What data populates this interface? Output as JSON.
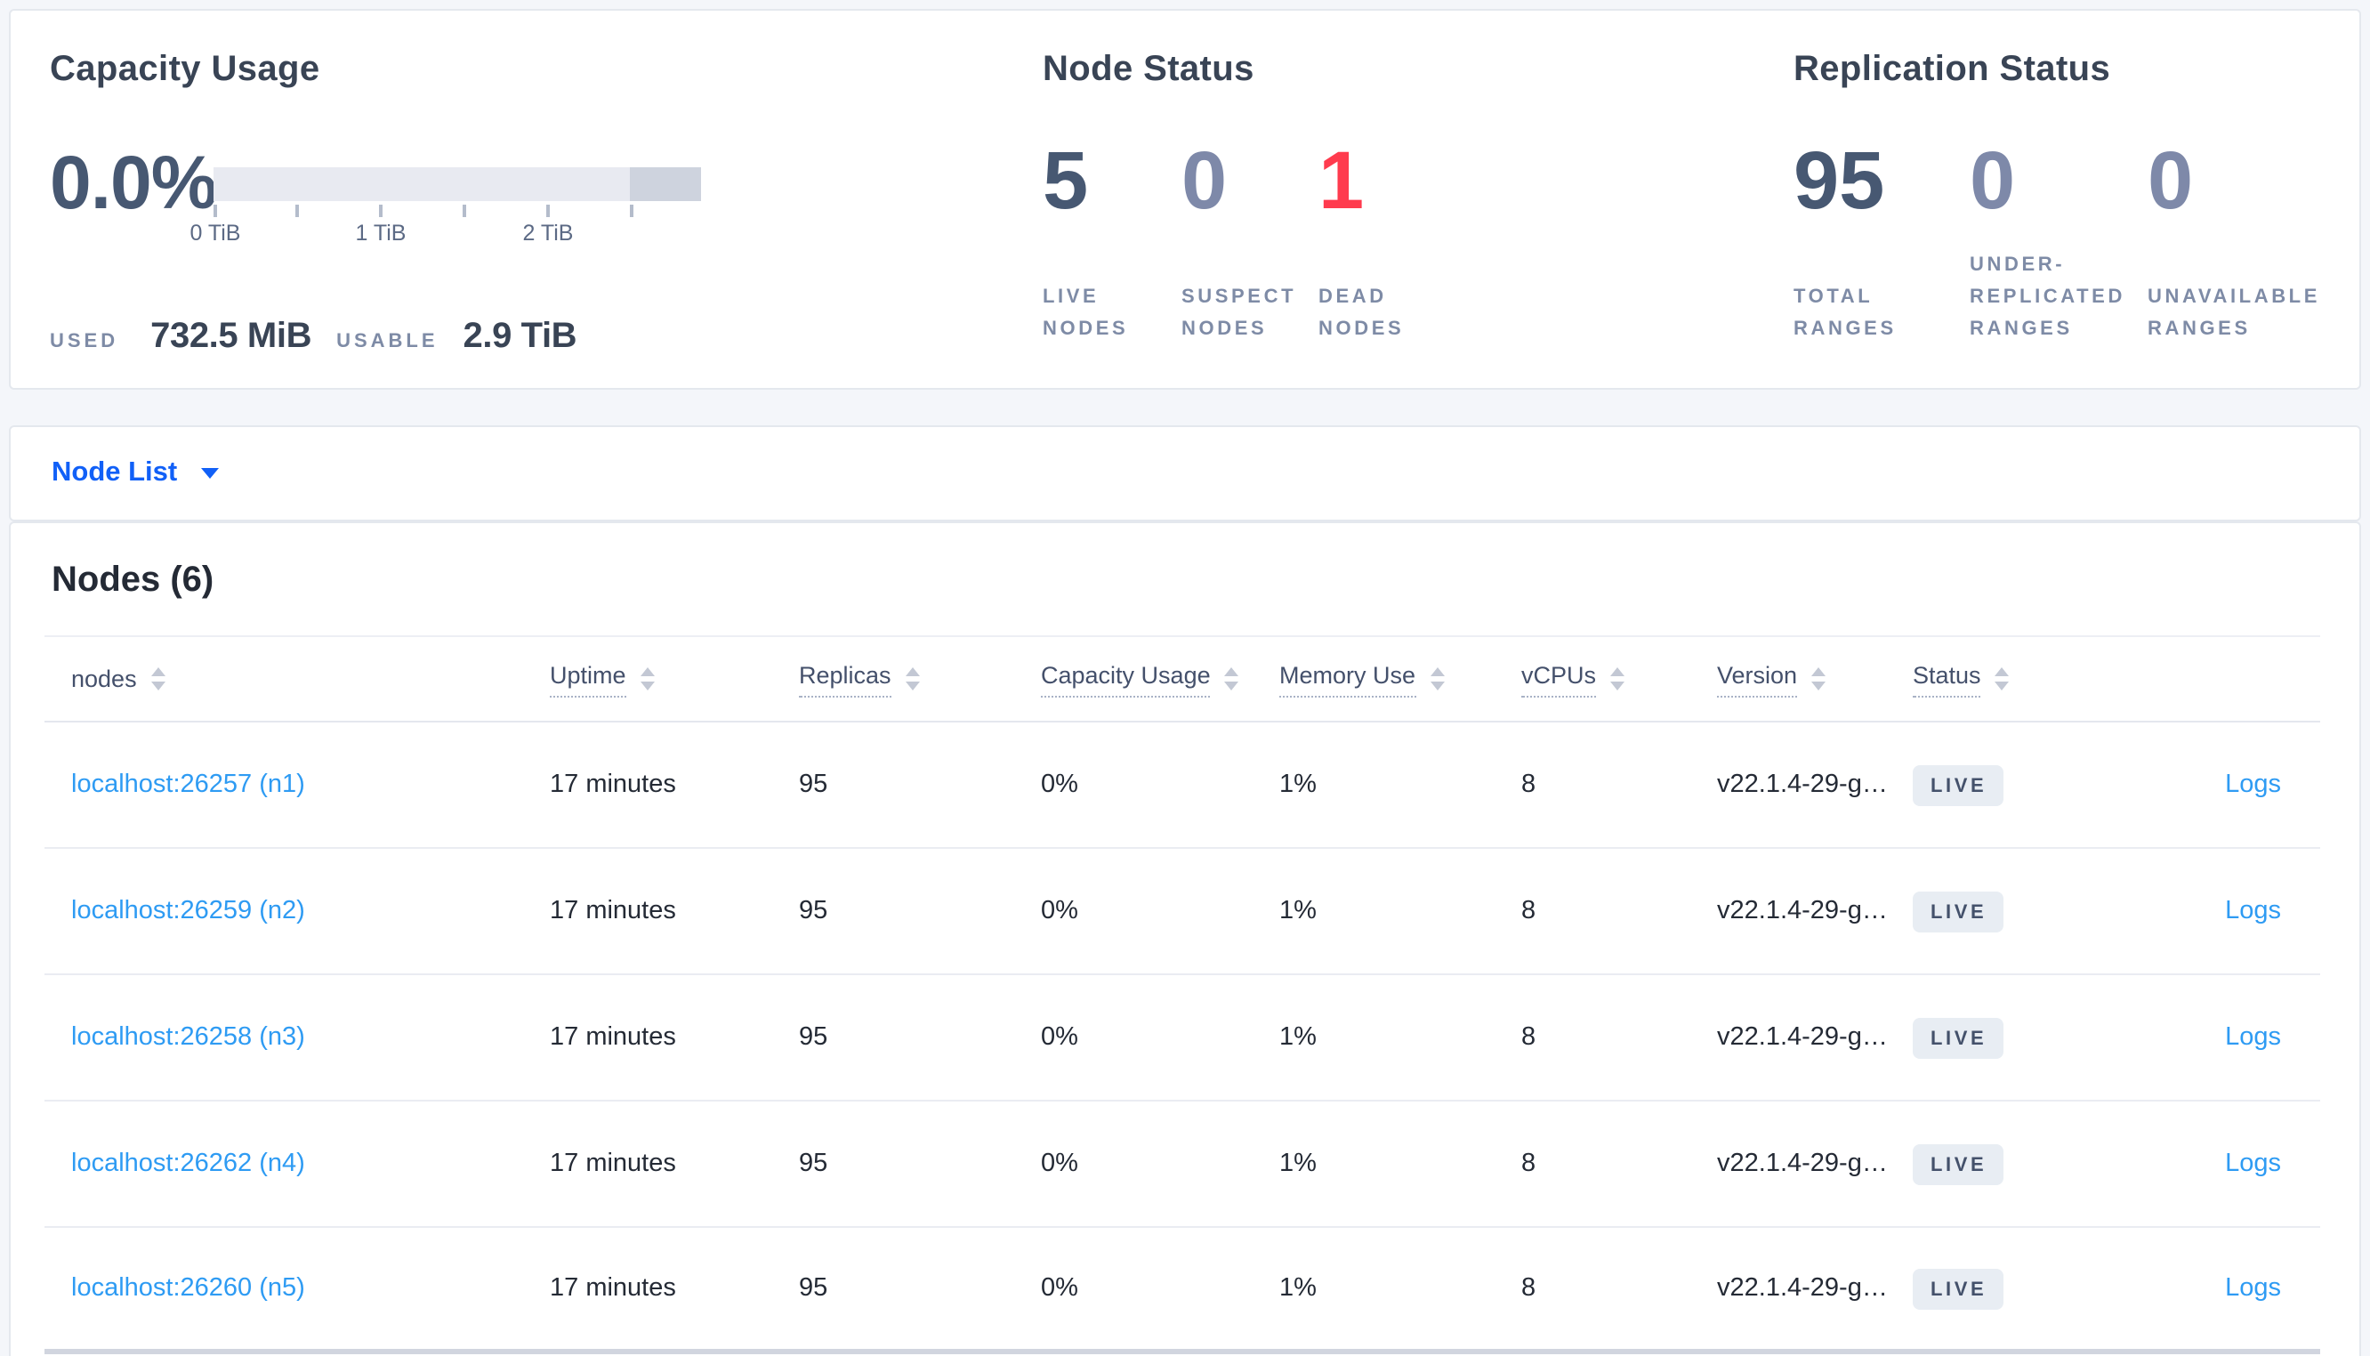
{
  "capacity_panel": {
    "title": "Capacity Usage",
    "percent": "0.0%",
    "bar": {
      "light_color": "#e8eaf1",
      "dark_color": "#ced3de",
      "light_width": "85.5%",
      "dark_width": "14.5%"
    },
    "tick_labels": [
      "0 TiB",
      "1 TiB",
      "2 TiB"
    ],
    "used_label": "USED",
    "used_value": "732.5 MiB",
    "usable_label": "USABLE",
    "usable_value": "2.9 TiB"
  },
  "node_status_panel": {
    "title": "Node Status",
    "stats": [
      {
        "value": "5",
        "label": "LIVE NODES",
        "color": "#475872"
      },
      {
        "value": "0",
        "label": "SUSPECT NODES",
        "color": "#7e89a9"
      },
      {
        "value": "1",
        "label": "DEAD NODES",
        "color": "#ff3b4e"
      }
    ]
  },
  "replication_panel": {
    "title": "Replication Status",
    "stats": [
      {
        "value": "95",
        "label": "TOTAL RANGES",
        "color": "#475872"
      },
      {
        "value": "0",
        "label": "UNDER-REPLICATED RANGES",
        "color": "#7e89a9"
      },
      {
        "value": "0",
        "label": "UNAVAILABLE RANGES",
        "color": "#7e89a9"
      }
    ]
  },
  "view_selector": {
    "label": "Node List"
  },
  "nodes_table": {
    "heading": "Nodes (6)",
    "columns": [
      {
        "label": "nodes",
        "tooltip_underline": false
      },
      {
        "label": "Uptime",
        "tooltip_underline": true
      },
      {
        "label": "Replicas",
        "tooltip_underline": true
      },
      {
        "label": "Capacity Usage",
        "tooltip_underline": true
      },
      {
        "label": "Memory Use",
        "tooltip_underline": true
      },
      {
        "label": "vCPUs",
        "tooltip_underline": true
      },
      {
        "label": "Version",
        "tooltip_underline": true
      },
      {
        "label": "Status",
        "tooltip_underline": true
      },
      {
        "label": "",
        "tooltip_underline": false
      }
    ],
    "rows": [
      {
        "node": "localhost:26257 (n1)",
        "uptime": "17 minutes",
        "replicas": "95",
        "capacity_usage": "0%",
        "memory_use": "1%",
        "vcpus": "8",
        "version": "v22.1.4-29-g…",
        "status": "LIVE",
        "logs": "Logs"
      },
      {
        "node": "localhost:26259 (n2)",
        "uptime": "17 minutes",
        "replicas": "95",
        "capacity_usage": "0%",
        "memory_use": "1%",
        "vcpus": "8",
        "version": "v22.1.4-29-g…",
        "status": "LIVE",
        "logs": "Logs"
      },
      {
        "node": "localhost:26258 (n3)",
        "uptime": "17 minutes",
        "replicas": "95",
        "capacity_usage": "0%",
        "memory_use": "1%",
        "vcpus": "8",
        "version": "v22.1.4-29-g…",
        "status": "LIVE",
        "logs": "Logs"
      },
      {
        "node": "localhost:26262 (n4)",
        "uptime": "17 minutes",
        "replicas": "95",
        "capacity_usage": "0%",
        "memory_use": "1%",
        "vcpus": "8",
        "version": "v22.1.4-29-g…",
        "status": "LIVE",
        "logs": "Logs"
      },
      {
        "node": "localhost:26260 (n5)",
        "uptime": "17 minutes",
        "replicas": "95",
        "capacity_usage": "0%",
        "memory_use": "1%",
        "vcpus": "8",
        "version": "v22.1.4-29-g…",
        "status": "LIVE",
        "logs": "Logs"
      }
    ]
  }
}
